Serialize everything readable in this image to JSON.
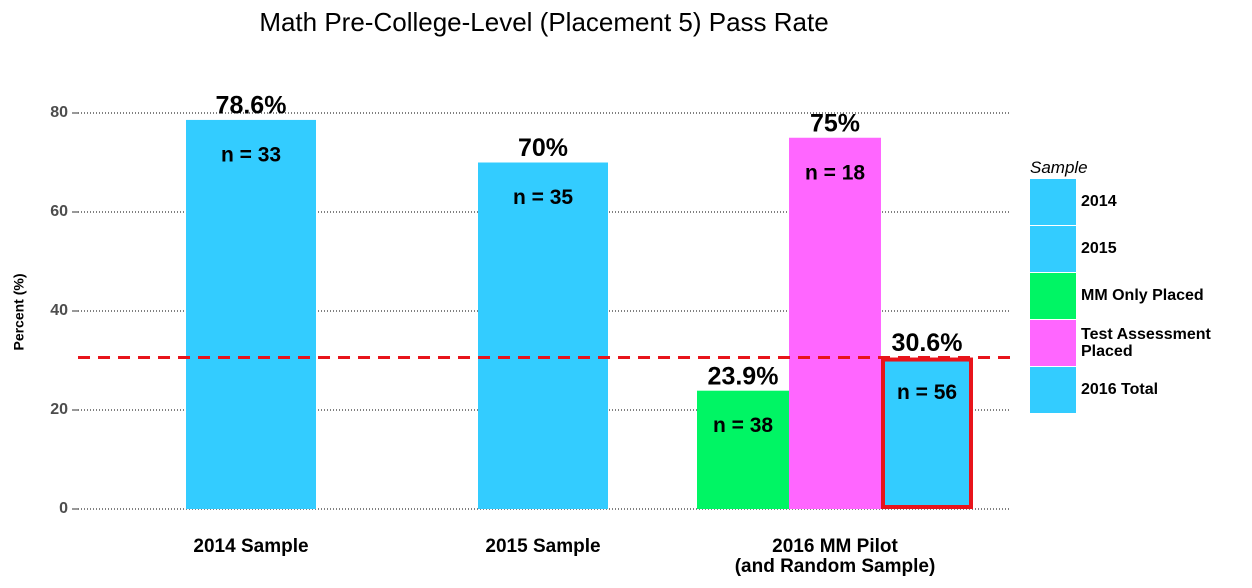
{
  "chart_data": {
    "type": "bar",
    "title": "Math Pre-College-Level (Placement 5) Pass Rate",
    "y_label": "Percent (%)",
    "categories": [
      "2014 Sample",
      "2015 Sample",
      "2016 MM Pilot\n(and Random Sample)"
    ],
    "series": [
      {
        "name": "2014",
        "color": "#33ccff",
        "values": [
          78.6,
          null,
          null
        ],
        "value_labels": [
          "78.6%",
          null,
          null
        ],
        "n_labels": [
          "n = 33",
          null,
          null
        ]
      },
      {
        "name": "2015",
        "color": "#33ccff",
        "values": [
          null,
          70,
          null
        ],
        "value_labels": [
          null,
          "70%",
          null
        ],
        "n_labels": [
          null,
          "n = 35",
          null
        ]
      },
      {
        "name": "MM Only Placed",
        "color": "#00f564",
        "values": [
          null,
          null,
          23.9
        ],
        "value_labels": [
          null,
          null,
          "23.9%"
        ],
        "n_labels": [
          null,
          null,
          "n = 38"
        ]
      },
      {
        "name": "Test Assessment Placed",
        "color": "#ff66ff",
        "values": [
          null,
          null,
          75
        ],
        "value_labels": [
          null,
          null,
          "75%"
        ],
        "n_labels": [
          null,
          null,
          "n = 18"
        ]
      },
      {
        "name": "2016 Total",
        "color": "#33ccff",
        "outline": "#e8141b",
        "values": [
          null,
          null,
          30.6
        ],
        "value_labels": [
          null,
          null,
          "30.6%"
        ],
        "n_labels": [
          null,
          null,
          "n = 56"
        ]
      }
    ],
    "ylim": [
      0,
      80
    ],
    "yticks": [
      0,
      20,
      40,
      60,
      80
    ],
    "grid": true,
    "reference_line": 30.6,
    "reference_color": "#e8141b",
    "legend_title": "Sample",
    "legend": "right"
  }
}
